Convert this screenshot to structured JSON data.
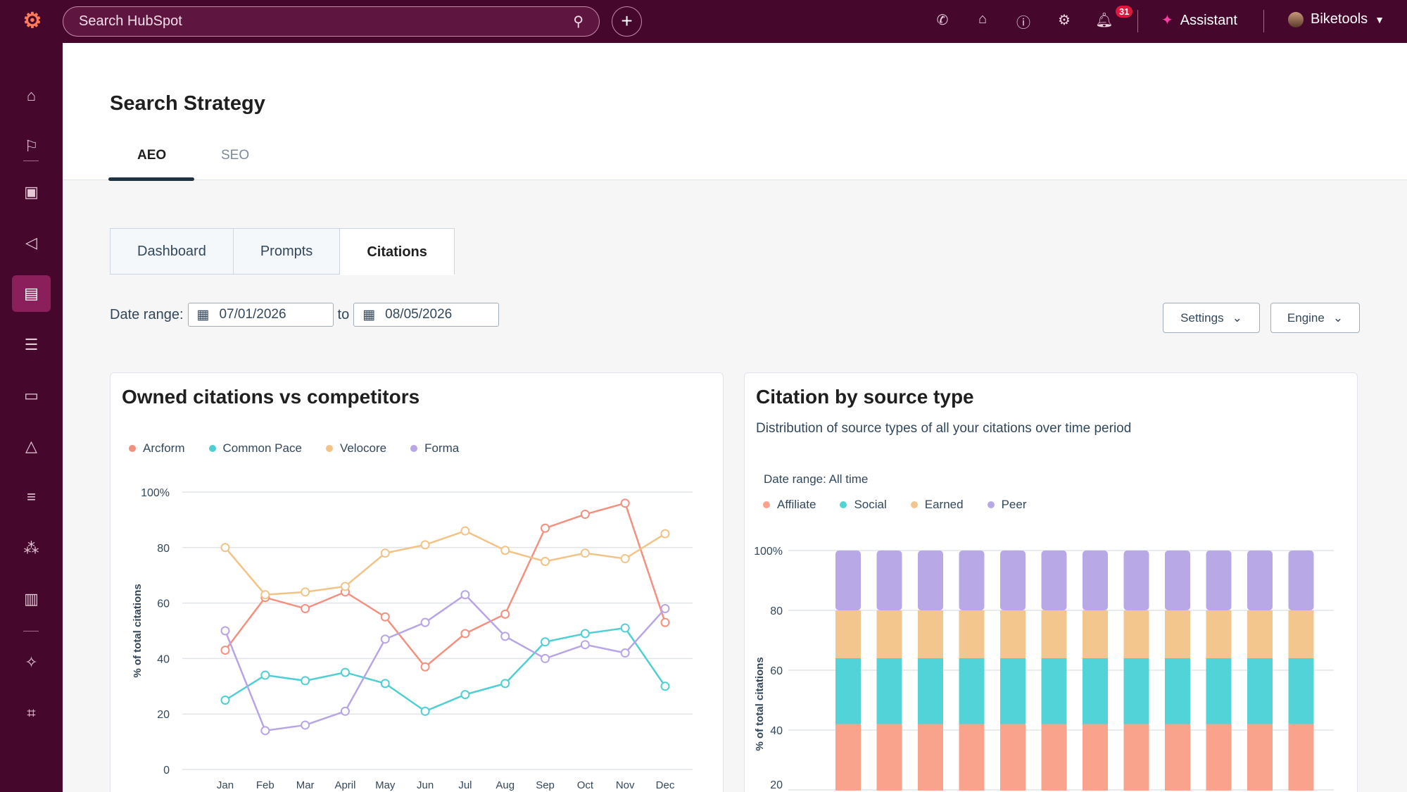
{
  "topbar": {
    "search_placeholder": "Search HubSpot",
    "notifications": "31",
    "assistant": "Assistant",
    "account": "Biketools"
  },
  "colors": {
    "topbar": "#45072c",
    "accent": "#ff7a59",
    "arcform": "#f4907f",
    "common_pace": "#4fcfd3",
    "velocore": "#f2c387",
    "forma": "#b8a5e6"
  },
  "page": {
    "title": "Search Strategy",
    "tabs": [
      {
        "label": "AEO",
        "active": true
      },
      {
        "label": "SEO",
        "active": false
      }
    ],
    "subtabs": [
      {
        "label": "Dashboard"
      },
      {
        "label": "Prompts"
      },
      {
        "label": "Citations",
        "active": true
      }
    ],
    "date_label": "Date range:",
    "date_from": "07/01/2026",
    "date_to_label": "to",
    "date_to": "08/05/2026",
    "settings": "Settings",
    "engine": "Engine"
  },
  "chart_data": [
    {
      "type": "line",
      "title": "Owned citations vs competitors",
      "ylabel": "% of total citations",
      "ylim": [
        0,
        100
      ],
      "yticks": [
        "0",
        "20",
        "40",
        "60",
        "80",
        "100%"
      ],
      "grid": true,
      "legend": "top-left",
      "categories": [
        "Jan",
        "Feb",
        "Mar",
        "April",
        "May",
        "Jun",
        "Jul",
        "Aug",
        "Sep",
        "Oct",
        "Nov",
        "Dec"
      ],
      "series": [
        {
          "name": "Arcform",
          "color": "#f4907f",
          "values": [
            43,
            62,
            58,
            64,
            55,
            37,
            49,
            56,
            87,
            92,
            96,
            53
          ]
        },
        {
          "name": "Common Pace",
          "color": "#4fcfd3",
          "values": [
            25,
            34,
            32,
            35,
            31,
            21,
            27,
            31,
            46,
            49,
            51,
            30
          ]
        },
        {
          "name": "Velocore",
          "color": "#f2c387",
          "values": [
            80,
            63,
            64,
            66,
            78,
            81,
            86,
            79,
            75,
            78,
            76,
            85
          ]
        },
        {
          "name": "Forma",
          "color": "#b8a5e6",
          "values": [
            50,
            14,
            16,
            21,
            47,
            53,
            63,
            48,
            40,
            45,
            42,
            58
          ]
        }
      ]
    },
    {
      "type": "bar",
      "stacked": true,
      "title": "Citation by source type",
      "subtitle": "Distribution of source types of all your citations over time period",
      "date_range": "Date range: All time",
      "ylabel": "% of total citations",
      "ylim": [
        0,
        100
      ],
      "yticks": [
        "20",
        "40",
        "60",
        "80",
        "100%"
      ],
      "grid": true,
      "legend": "top-left",
      "series": [
        {
          "name": "Affiliate",
          "color": "#f9a38c",
          "values": [
            42,
            42,
            42,
            42,
            42,
            42,
            42,
            42,
            42,
            42,
            42,
            42
          ]
        },
        {
          "name": "Social",
          "color": "#52d3d8",
          "values": [
            22,
            22,
            22,
            22,
            22,
            22,
            22,
            22,
            22,
            22,
            22,
            22
          ]
        },
        {
          "name": "Earned",
          "color": "#f2c68c",
          "values": [
            16,
            16,
            16,
            16,
            16,
            16,
            16,
            16,
            16,
            16,
            16,
            16
          ]
        },
        {
          "name": "Peer",
          "color": "#b9a8e6",
          "values": [
            20,
            20,
            20,
            20,
            20,
            20,
            20,
            20,
            20,
            20,
            20,
            20
          ]
        }
      ]
    }
  ]
}
